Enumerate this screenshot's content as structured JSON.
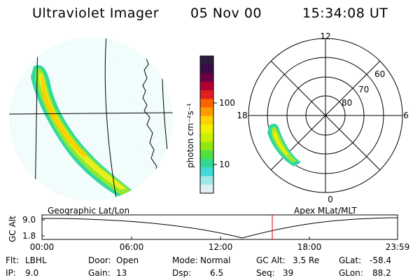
{
  "header": {
    "title": "Ultraviolet Imager",
    "date": "05 Nov 00",
    "time": "15:34:08 UT"
  },
  "left_panel": {
    "caption": "Geographic Lat/Lon"
  },
  "right_panel": {
    "caption": "Apex MLat/MLT",
    "mlt_labels": [
      "12",
      "18",
      "6",
      "0"
    ],
    "lat_labels": [
      "60",
      "70",
      "80"
    ]
  },
  "colorbar": {
    "unit_label": "photon cm⁻²s⁻¹",
    "tick_labels": [
      "100",
      "10"
    ],
    "colors": [
      "#2b1b3d",
      "#3b0a4a",
      "#6a0040",
      "#b00030",
      "#e02020",
      "#ff6000",
      "#ff9a00",
      "#ffd000",
      "#f0f000",
      "#c8f000",
      "#90e810",
      "#50e040",
      "#30d890",
      "#40d8d8",
      "#a0e8e8",
      "#e0f0f0"
    ]
  },
  "timeline": {
    "y_label": "GC Alt",
    "y_ticks": [
      "9.0",
      "1.8"
    ],
    "x_ticks": [
      "00:00",
      "06:00",
      "12:00",
      "18:00",
      "23:59"
    ],
    "marker_color": "#e00000"
  },
  "info": {
    "flt_label": "Flt:",
    "flt_value": "LBHL",
    "ip_label": "IP:",
    "ip_value": "9.0",
    "door_label": "Door:",
    "door_value": "Open",
    "gain_label": "Gain:",
    "gain_value": "13",
    "mode_label": "Mode:",
    "mode_value": "Normal",
    "dsp_label": "Dsp:",
    "dsp_value": "6.5",
    "gcalt_label": "GC Alt:",
    "gcalt_value": "3.5 Re",
    "seq_label": "Seq:",
    "seq_value": "39",
    "glat_label": "GLat:",
    "glat_value": "-58.4",
    "glon_label": "GLon:",
    "glon_value": "88.2"
  }
}
